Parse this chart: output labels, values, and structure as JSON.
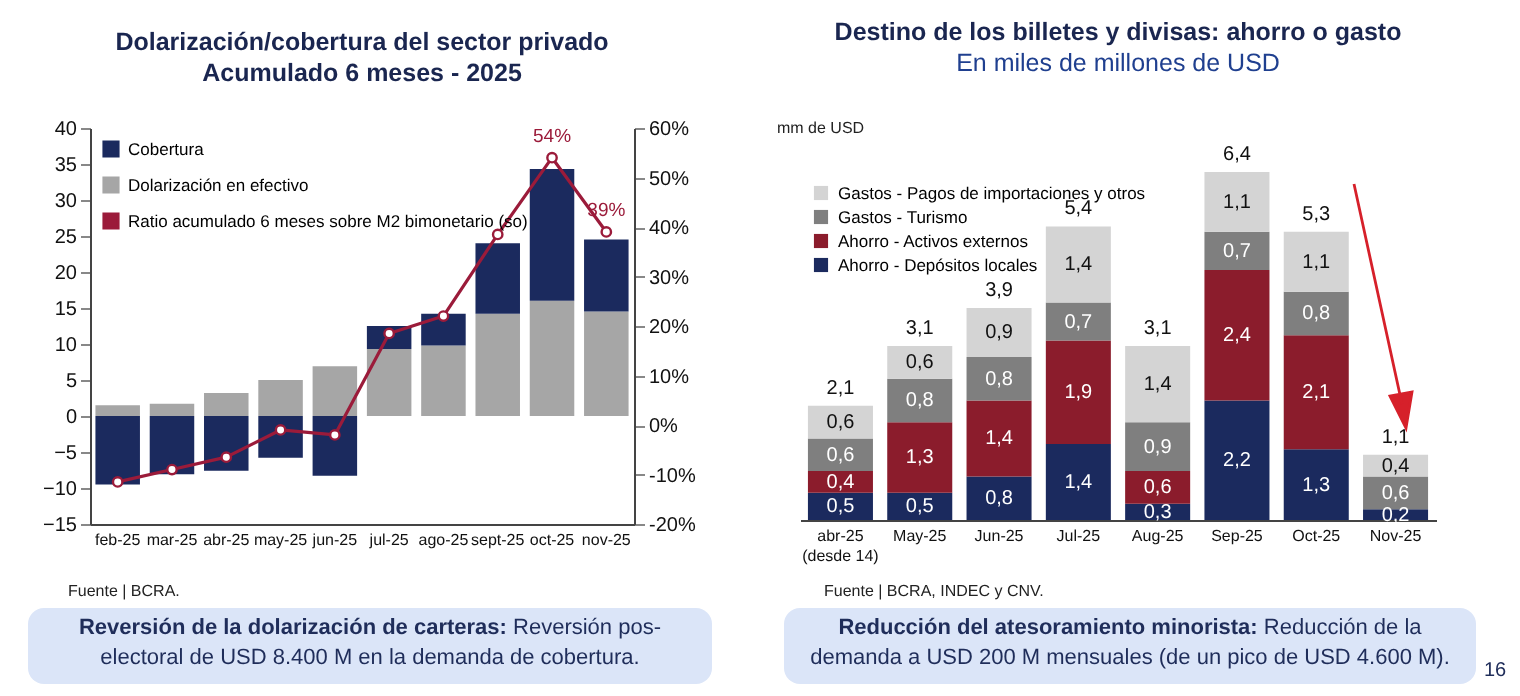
{
  "chart_data": [
    {
      "type": "bar",
      "title": "Dolarización/cobertura del sector privado",
      "subtitle": "Acumulado 6 meses - 2025",
      "categories": [
        "feb-25",
        "mar-25",
        "abr-25",
        "may-25",
        "jun-25",
        "jul-25",
        "ago-25",
        "sept-25",
        "oct-25",
        "nov-25"
      ],
      "stacked": true,
      "series": [
        {
          "name": "Dolarización en efectivo",
          "color": "#a6a6a6",
          "values": [
            1.5,
            1.7,
            3.2,
            5.0,
            6.9,
            9.3,
            9.8,
            14.2,
            16.0,
            14.5
          ]
        },
        {
          "name": "Cobertura",
          "color": "#1b2a5e",
          "values": [
            -9.5,
            -8.1,
            -7.6,
            -5.8,
            -8.3,
            3.2,
            4.4,
            9.8,
            18.3,
            10.0
          ]
        },
        {
          "name": "Ratio acumulado 6 meses sobre M2 bimonetario (so)",
          "type": "line",
          "axis": "y2",
          "color": "#9b1b3a",
          "values": [
            -11.5,
            -9,
            -6.5,
            -1,
            -2,
            18.5,
            22,
            38.5,
            54,
            39
          ],
          "value_labels": [
            null,
            null,
            null,
            null,
            null,
            null,
            null,
            null,
            "54%",
            "39%"
          ]
        }
      ],
      "ylim": [
        -15,
        40
      ],
      "yticks": [
        -15,
        -10,
        -5,
        0,
        5,
        10,
        15,
        20,
        25,
        30,
        35,
        40
      ],
      "y2lim": [
        -20,
        60
      ],
      "y2ticks": [
        {
          "value": -20,
          "label": "-20%"
        },
        {
          "value": -10,
          "label": "-10%"
        },
        {
          "value": 0,
          "label": "0%"
        },
        {
          "value": 10,
          "label": "10%"
        },
        {
          "value": 20,
          "label": "20%"
        },
        {
          "value": 30,
          "label": "30%"
        },
        {
          "value": 40,
          "label": "40%"
        },
        {
          "value": 50,
          "label": "50%"
        },
        {
          "value": 60,
          "label": "60%"
        }
      ],
      "marker": "circle",
      "legend": "top left",
      "annotations": [
        "Fuente | BCRA.",
        "Reversión de la dolarización de carteras: Reversión pos-electoral de USD 8.400 M en la demanda de cobertura."
      ]
    },
    {
      "type": "bar",
      "title": "Destino de los billetes y divisas: ahorro o gasto",
      "subtitle": "En miles de millones de USD",
      "ylabel": "mm de USD",
      "categories": [
        "abr-25\n(desde 14)",
        "May-25",
        "Jun-25",
        "Jul-25",
        "Aug-25",
        "Sep-25",
        "Oct-25",
        "Nov-25"
      ],
      "stacked": true,
      "series": [
        {
          "name": "Ahorro - Depósitos locales",
          "color": "#1b2a5e",
          "values": [
            0.5,
            0.5,
            0.8,
            1.4,
            0.3,
            2.2,
            1.3,
            0.2
          ],
          "value_labels": [
            "0,5",
            "0,5",
            "0,8",
            "1,4",
            "0,3",
            "2,2",
            "1,3",
            "0,2"
          ]
        },
        {
          "name": "Ahorro - Activos externos",
          "color": "#8b1c2c",
          "values": [
            0.4,
            1.3,
            1.4,
            1.9,
            0.6,
            2.4,
            2.1,
            null
          ],
          "value_labels": [
            "0,4",
            "1,3",
            "1,4",
            "1,9",
            "0,6",
            "2,4",
            "2,1",
            null
          ]
        },
        {
          "name": "Gastos - Turismo",
          "color": "#7f7f7f",
          "values": [
            0.6,
            0.8,
            0.8,
            0.7,
            0.9,
            0.7,
            0.8,
            0.6
          ],
          "value_labels": [
            "0,6",
            "0,8",
            "0,8",
            "0,7",
            "0,9",
            "0,7",
            "0,8",
            "0,6"
          ]
        },
        {
          "name": "Gastos - Pagos de importaciones y otros",
          "color": "#d4d4d4",
          "values": [
            0.6,
            0.6,
            0.9,
            1.4,
            1.4,
            1.1,
            1.1,
            0.4
          ],
          "value_labels": [
            "0,6",
            "0,6",
            "0,9",
            "1,4",
            "1,4",
            "1,1",
            "1,1",
            "0,4"
          ]
        }
      ],
      "totals": [
        "2,1",
        "3,1",
        "3,9",
        "5,4",
        "3,1",
        "6,4",
        "5,3",
        "1,1"
      ],
      "tick_labels": "x",
      "legend": "top left",
      "annotations": [
        "Fuente | BCRA, INDEC y CNV.",
        "Reducción del atesoramiento minorista: Reducción de la demanda a USD 200 M mensuales (de un pico de USD 4.600 M).",
        "16"
      ]
    }
  ]
}
